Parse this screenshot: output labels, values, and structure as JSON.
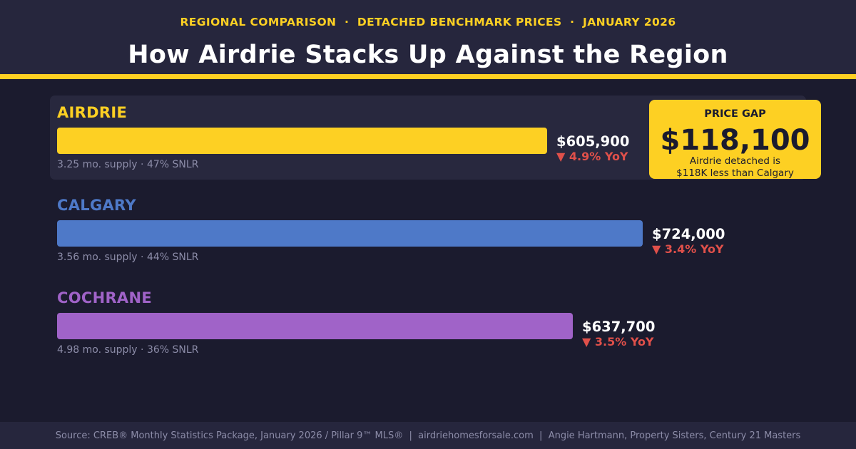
{
  "header": {
    "kicker": "REGIONAL COMPARISON  ·  DETACHED BENCHMARK PRICES  ·  JANUARY 2026",
    "title": "How Airdrie Stacks Up Against the Region"
  },
  "chart_data": {
    "type": "bar",
    "orientation": "horizontal",
    "title": "How Airdrie Stacks Up Against the Region",
    "subtitle": "Regional Comparison · Detached Benchmark Prices · January 2026",
    "xlabel": "",
    "ylabel": "",
    "categories": [
      "AIRDRIE",
      "CALGARY",
      "COCHRANE"
    ],
    "values": [
      605900,
      724000,
      637700
    ],
    "xlim": [
      0,
      724000
    ],
    "grid": false,
    "bars": [
      {
        "name": "AIRDRIE",
        "value": 605900,
        "price_label": "$605,900",
        "yoy_label": "▼ 4.9% YoY",
        "yoy_pct": -4.9,
        "meta": "3.25 mo. supply · 47% SNLR",
        "months_supply": 3.25,
        "snlr_pct": 47,
        "color": "#fdd023",
        "highlighted": true
      },
      {
        "name": "CALGARY",
        "value": 724000,
        "price_label": "$724,000",
        "yoy_label": "▼ 3.4% YoY",
        "yoy_pct": -3.4,
        "meta": "3.56 mo. supply · 44% SNLR",
        "months_supply": 3.56,
        "snlr_pct": 44,
        "color": "#4e79c8",
        "highlighted": false
      },
      {
        "name": "COCHRANE",
        "value": 637700,
        "price_label": "$637,700",
        "yoy_label": "▼ 3.5% YoY",
        "yoy_pct": -3.5,
        "meta": "4.98 mo. supply · 36% SNLR",
        "months_supply": 4.98,
        "snlr_pct": 36,
        "color": "#a063c8",
        "highlighted": false
      }
    ],
    "annotation": {
      "label": "PRICE GAP",
      "value": "$118,100",
      "description_line1": "Airdrie detached is",
      "description_line2": "$118K less than Calgary"
    }
  },
  "colors": {
    "accent": "#fdd023",
    "down": "#e0504a",
    "background": "#1b1b2e",
    "panel": "#26263d"
  },
  "footer": {
    "text": "Source: CREB® Monthly Statistics Package, January 2026 / Pillar 9™ MLS®  |  airdriehomesforsale.com  |  Angie Hartmann, Property Sisters, Century 21 Masters"
  }
}
